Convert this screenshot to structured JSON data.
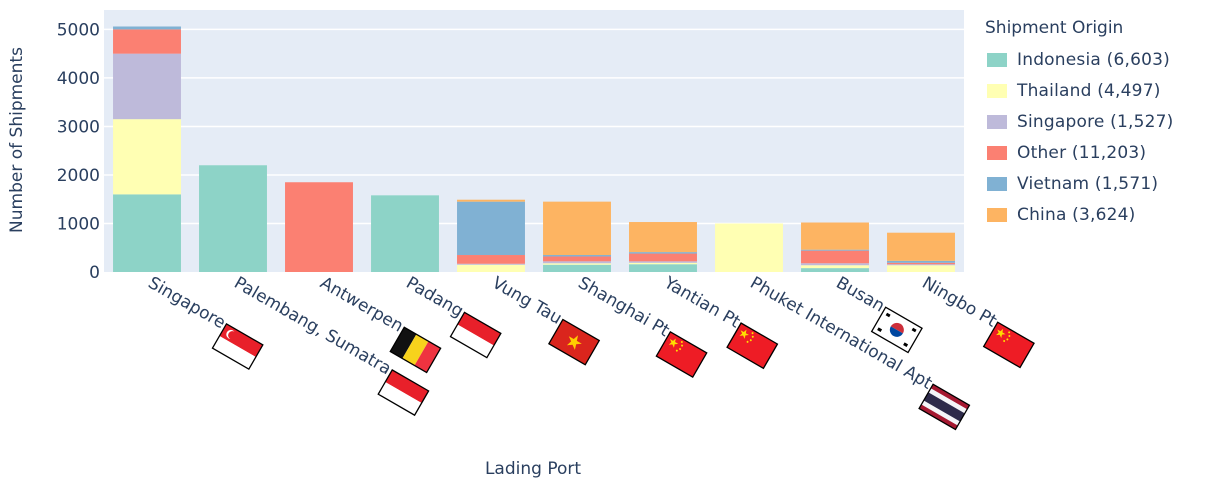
{
  "chart_data": {
    "type": "bar",
    "stacked": true,
    "xlabel": "Lading Port",
    "ylabel": "Number of Shipments",
    "ylim": [
      0,
      5400
    ],
    "yticks": [
      0,
      1000,
      2000,
      3000,
      4000,
      5000
    ],
    "grid": true,
    "legend_position": "right",
    "categories": [
      "Singapore",
      "Palembang, Sumatra",
      "Antwerpen",
      "Padang",
      "Vung Tau",
      "Shanghai Pt",
      "Yantian Pt",
      "Phuket International Apt",
      "Busan",
      "Ningbo Pt"
    ],
    "category_flags": [
      "singapore-flag-icon",
      "indonesia-flag-icon",
      "belgium-flag-icon",
      "indonesia-flag-icon",
      "vietnam-flag-icon",
      "china-flag-icon",
      "china-flag-icon",
      "thailand-flag-icon",
      "south-korea-flag-icon",
      "china-flag-icon"
    ],
    "legend_title": "Shipment Origin",
    "series": [
      {
        "name": "Indonesia (6,603)",
        "color": "#8dd3c7",
        "values": [
          1600,
          2200,
          0,
          1580,
          0,
          150,
          160,
          0,
          80,
          0
        ]
      },
      {
        "name": "Thailand (4,497)",
        "color": "#ffffb3",
        "values": [
          1550,
          0,
          0,
          0,
          150,
          30,
          30,
          1000,
          60,
          140
        ]
      },
      {
        "name": "Singapore (1,527)",
        "color": "#bebada",
        "values": [
          1350,
          0,
          0,
          0,
          20,
          40,
          30,
          0,
          40,
          20
        ]
      },
      {
        "name": "Other (11,203)",
        "color": "#fb8072",
        "values": [
          500,
          0,
          1850,
          0,
          180,
          100,
          160,
          0,
          260,
          30
        ]
      },
      {
        "name": "Vietnam (1,571)",
        "color": "#80b1d3",
        "values": [
          60,
          0,
          0,
          0,
          1100,
          30,
          30,
          0,
          20,
          40
        ]
      },
      {
        "name": "China (3,624)",
        "color": "#fdb462",
        "values": [
          0,
          0,
          0,
          0,
          40,
          1100,
          620,
          0,
          560,
          580
        ]
      }
    ]
  }
}
